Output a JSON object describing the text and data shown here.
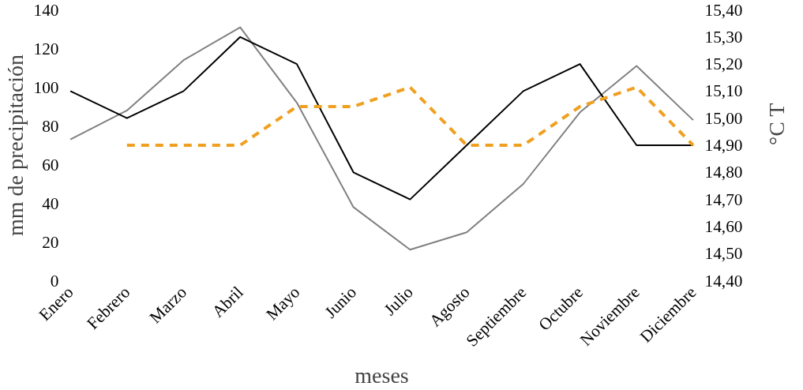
{
  "chart_data": {
    "type": "line",
    "xlabel": "meses",
    "ylabel": "mm de precipitación",
    "y2label": "°C T",
    "categories": [
      "Enero",
      "Febrero",
      "Marzo",
      "Abril",
      "Mayo",
      "Junio",
      "Julio",
      "Agosto",
      "Septiembre",
      "Octubre",
      "Noviembre",
      "Diciembre"
    ],
    "series": [
      {
        "color": "#808080",
        "values": [
          73,
          88,
          114,
          131,
          92,
          38,
          16,
          25,
          50,
          87,
          111,
          83
        ]
      },
      {
        "color": "#000000",
        "axis": "y2",
        "values": [
          15.1,
          15.0,
          15.1,
          15.3,
          15.2,
          14.8,
          14.7,
          14.9,
          15.1,
          15.2,
          14.9,
          14.9
        ]
      },
      {
        "color": "#f0a020",
        "line_style": "dashed",
        "values": [
          null,
          70,
          70,
          70,
          90,
          90,
          100,
          70,
          70,
          90,
          100,
          70
        ]
      }
    ],
    "ylim": [
      0,
      140
    ],
    "yticks": [
      0,
      20,
      40,
      60,
      80,
      100,
      120,
      140
    ],
    "y2lim": [
      14.4,
      15.4
    ],
    "y2ticks": [
      {
        "value": 14.4,
        "label": "14,40"
      },
      {
        "value": 14.5,
        "label": "14,50"
      },
      {
        "value": 14.6,
        "label": "14,60"
      },
      {
        "value": 14.7,
        "label": "14,70"
      },
      {
        "value": 14.8,
        "label": "14,80"
      },
      {
        "value": 14.9,
        "label": "14,90"
      },
      {
        "value": 15.0,
        "label": "15,00"
      },
      {
        "value": 15.1,
        "label": "15,10"
      },
      {
        "value": 15.2,
        "label": "15,20"
      },
      {
        "value": 15.3,
        "label": "15,30"
      },
      {
        "value": 15.4,
        "label": "15,40"
      }
    ],
    "grid": false,
    "marker": "none"
  }
}
